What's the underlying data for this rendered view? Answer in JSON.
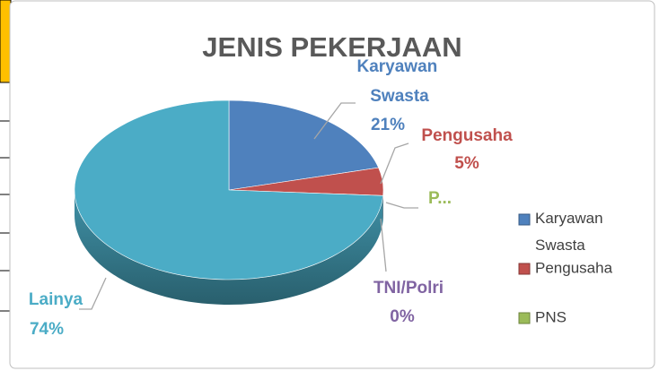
{
  "chart_data": {
    "type": "pie",
    "title": "JENIS PEKERJAAN",
    "categories": [
      "Karyawan Swasta",
      "Pengusaha",
      "PNS",
      "TNI/Polri",
      "Lainya"
    ],
    "values": [
      21,
      5,
      0,
      0,
      74
    ],
    "value_labels": [
      "21%",
      "5%",
      null,
      "0%",
      "74%"
    ],
    "point_labels": [
      "Karyawan Swasta",
      "Pengusaha",
      "P...",
      "TNI/Polri",
      "Lainya"
    ],
    "colors": [
      "#4f81bd",
      "#c0504d",
      "#9bbb59",
      "#8064a2",
      "#4bacc6"
    ],
    "legend": "right"
  }
}
